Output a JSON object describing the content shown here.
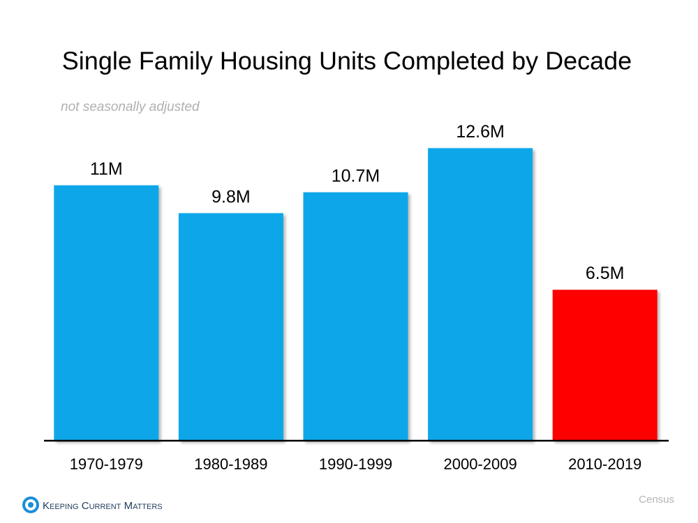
{
  "chart_data": {
    "type": "bar",
    "title": "Single Family Housing Units Completed by Decade",
    "subtitle": "not seasonally adjusted",
    "categories": [
      "1970-1979",
      "1980-1989",
      "1990-1999",
      "2000-2009",
      "2010-2019"
    ],
    "values": [
      11,
      9.8,
      10.7,
      12.6,
      6.5
    ],
    "value_labels": [
      "11M",
      "9.8M",
      "10.7M",
      "12.6M",
      "6.5M"
    ],
    "colors": [
      "#0ea7e9",
      "#0ea7e9",
      "#0ea7e9",
      "#0ea7e9",
      "#ff0000"
    ],
    "source": "Census",
    "brand": "Keeping Current Matters"
  }
}
